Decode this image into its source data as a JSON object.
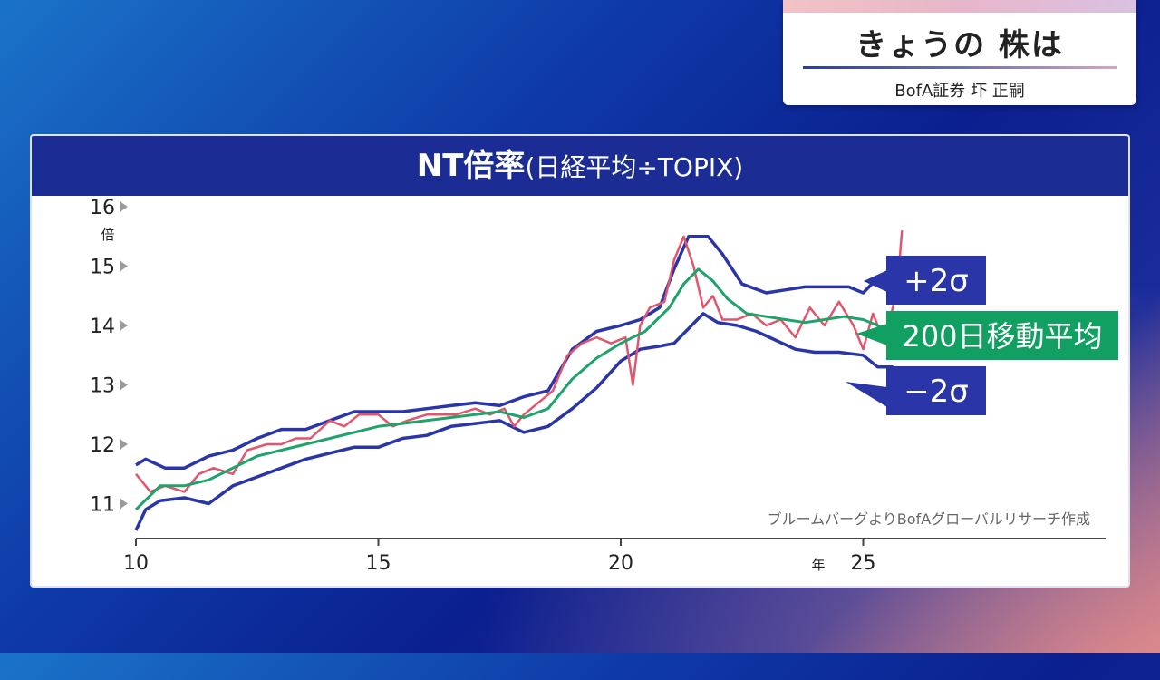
{
  "header_card": {
    "title": "きょうの 株は",
    "subtitle": "BofA証券 圷 正嗣"
  },
  "chart_header": {
    "title_main": "NT倍率",
    "title_sub": "(日経平均÷TOPIX)"
  },
  "labels": {
    "y_unit": "倍",
    "x_unit": "年",
    "upper_band": "+2σ",
    "moving_average": "200日移動平均",
    "lower_band": "−2σ",
    "source_note": "ブルームバーグよりBofAグローバルリサーチ作成"
  },
  "colors": {
    "header_bg": "#1b2c94",
    "ratio_line": "#e0566c",
    "moving_average": "#1fa36a",
    "bands": "#2a35a8",
    "label_ma_bg": "#12a062",
    "label_band_bg": "#2a35a8"
  },
  "chart_data": {
    "type": "line",
    "title": "NT倍率(日経平均÷TOPIX)",
    "ylabel": "倍",
    "xlabel": "年",
    "xlim": [
      2010,
      2030
    ],
    "ylim": [
      10.6,
      16
    ],
    "x_ticks": [
      10,
      15,
      20,
      25
    ],
    "y_ticks": [
      11,
      12,
      13,
      14,
      15,
      16
    ],
    "grid": false,
    "series": [
      {
        "name": "NT倍率",
        "x": [
          2010.0,
          2010.3,
          2010.6,
          2011.0,
          2011.3,
          2011.6,
          2012.0,
          2012.3,
          2012.7,
          2013.0,
          2013.3,
          2013.6,
          2014.0,
          2014.3,
          2014.6,
          2015.0,
          2015.3,
          2015.6,
          2016.0,
          2016.3,
          2016.6,
          2017.0,
          2017.3,
          2017.6,
          2017.8,
          2018.0,
          2018.3,
          2018.6,
          2018.9,
          2019.2,
          2019.5,
          2019.8,
          2020.1,
          2020.25,
          2020.4,
          2020.6,
          2020.9,
          2021.1,
          2021.3,
          2021.5,
          2021.7,
          2021.9,
          2022.1,
          2022.4,
          2022.7,
          2023.0,
          2023.3,
          2023.6,
          2023.9,
          2024.2,
          2024.5,
          2024.8,
          2025.0,
          2025.2,
          2025.4,
          2025.55,
          2025.7,
          2025.8
        ],
        "values": [
          11.5,
          11.2,
          11.3,
          11.2,
          11.5,
          11.6,
          11.5,
          11.9,
          12.0,
          12.0,
          12.1,
          12.1,
          12.4,
          12.3,
          12.5,
          12.5,
          12.3,
          12.4,
          12.5,
          12.5,
          12.5,
          12.6,
          12.5,
          12.6,
          12.3,
          12.5,
          12.7,
          12.9,
          13.5,
          13.7,
          13.8,
          13.7,
          13.8,
          13.0,
          14.0,
          14.3,
          14.4,
          15.1,
          15.5,
          15.0,
          14.3,
          14.5,
          14.1,
          14.1,
          14.2,
          14.0,
          14.1,
          13.8,
          14.3,
          14.0,
          14.4,
          14.0,
          13.6,
          14.2,
          13.8,
          14.1,
          14.6,
          15.6
        ]
      },
      {
        "name": "200日移動平均",
        "x": [
          2010.0,
          2010.5,
          2011.0,
          2011.5,
          2012.0,
          2012.5,
          2013.0,
          2013.5,
          2014.0,
          2014.5,
          2015.0,
          2015.5,
          2016.0,
          2016.5,
          2017.0,
          2017.5,
          2018.0,
          2018.5,
          2019.0,
          2019.5,
          2020.0,
          2020.5,
          2021.0,
          2021.3,
          2021.6,
          2021.9,
          2022.2,
          2022.6,
          2023.0,
          2023.4,
          2023.8,
          2024.2,
          2024.6,
          2025.0,
          2025.3,
          2025.55,
          2025.8
        ],
        "values": [
          10.9,
          11.3,
          11.3,
          11.4,
          11.6,
          11.8,
          11.9,
          12.0,
          12.1,
          12.2,
          12.3,
          12.35,
          12.4,
          12.45,
          12.5,
          12.55,
          12.45,
          12.6,
          13.1,
          13.45,
          13.7,
          13.9,
          14.3,
          14.7,
          14.95,
          14.75,
          14.45,
          14.2,
          14.15,
          14.1,
          14.05,
          14.1,
          14.15,
          14.1,
          14.0,
          13.9,
          14.0
        ]
      },
      {
        "name": "+2σ",
        "x": [
          2010.0,
          2010.2,
          2010.6,
          2011.0,
          2011.5,
          2012.0,
          2012.5,
          2013.0,
          2013.5,
          2014.0,
          2014.5,
          2015.0,
          2015.5,
          2016.0,
          2016.5,
          2017.0,
          2017.5,
          2018.0,
          2018.5,
          2019.0,
          2019.5,
          2020.0,
          2020.4,
          2020.8,
          2021.1,
          2021.4,
          2021.8,
          2022.1,
          2022.5,
          2023.0,
          2023.4,
          2023.8,
          2024.3,
          2024.7,
          2025.0,
          2025.3,
          2025.6,
          2025.8
        ],
        "values": [
          11.65,
          11.75,
          11.6,
          11.6,
          11.8,
          11.9,
          12.1,
          12.25,
          12.25,
          12.4,
          12.55,
          12.55,
          12.55,
          12.6,
          12.65,
          12.7,
          12.65,
          12.8,
          12.9,
          13.6,
          13.9,
          14.0,
          14.1,
          14.3,
          14.95,
          15.5,
          15.5,
          15.2,
          14.7,
          14.55,
          14.6,
          14.65,
          14.65,
          14.65,
          14.55,
          14.8,
          14.8,
          14.9
        ]
      },
      {
        "name": "−2σ",
        "x": [
          2010.0,
          2010.2,
          2010.5,
          2011.0,
          2011.5,
          2012.0,
          2012.5,
          2013.0,
          2013.5,
          2014.0,
          2014.5,
          2015.0,
          2015.5,
          2016.0,
          2016.5,
          2017.0,
          2017.5,
          2018.0,
          2018.5,
          2019.0,
          2019.5,
          2020.0,
          2020.4,
          2020.8,
          2021.1,
          2021.4,
          2021.7,
          2022.0,
          2022.4,
          2022.8,
          2023.2,
          2023.6,
          2024.0,
          2024.5,
          2025.0,
          2025.3,
          2025.6,
          2025.8
        ],
        "values": [
          10.55,
          10.9,
          11.05,
          11.1,
          11.0,
          11.3,
          11.45,
          11.6,
          11.75,
          11.85,
          11.95,
          11.95,
          12.1,
          12.15,
          12.3,
          12.35,
          12.4,
          12.2,
          12.3,
          12.6,
          12.95,
          13.4,
          13.6,
          13.65,
          13.7,
          13.95,
          14.2,
          14.05,
          14.0,
          13.9,
          13.75,
          13.6,
          13.55,
          13.55,
          13.5,
          13.3,
          13.3,
          13.15
        ]
      }
    ]
  }
}
